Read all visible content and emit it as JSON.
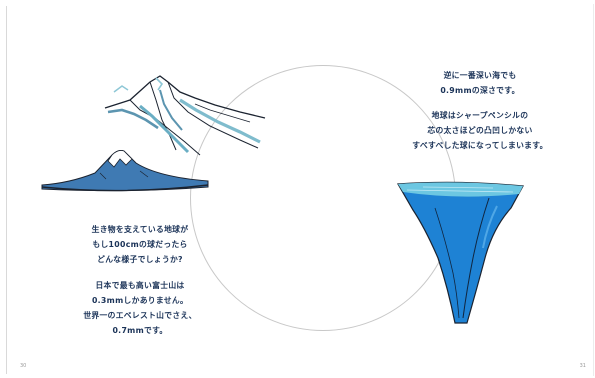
{
  "left_page": {
    "paragraph_1": [
      "生き物を支えている地球が",
      "もし100cmの球だったら",
      "どんな様子でしょうか?"
    ],
    "paragraph_2": [
      "日本で最も高い富士山は",
      "0.3mmしかありません。",
      "世界一のエベレスト山でさえ、",
      "0.7mmです。"
    ],
    "page_number": "30"
  },
  "right_page": {
    "paragraph_1": [
      "逆に一番深い海でも",
      "0.9mmの深さです。"
    ],
    "paragraph_2": [
      "地球はシャープペンシルの",
      "芯の太さほどの凸凹しかない",
      "すべすべした球になってしまいます。"
    ],
    "page_number": "31"
  },
  "colors": {
    "text": "#1b3358",
    "mountain_blue": "#3f7ab3",
    "ice_blue": "#8ec7d6",
    "ocean_blue": "#1e82d4",
    "circle": "#c8c8c8"
  }
}
